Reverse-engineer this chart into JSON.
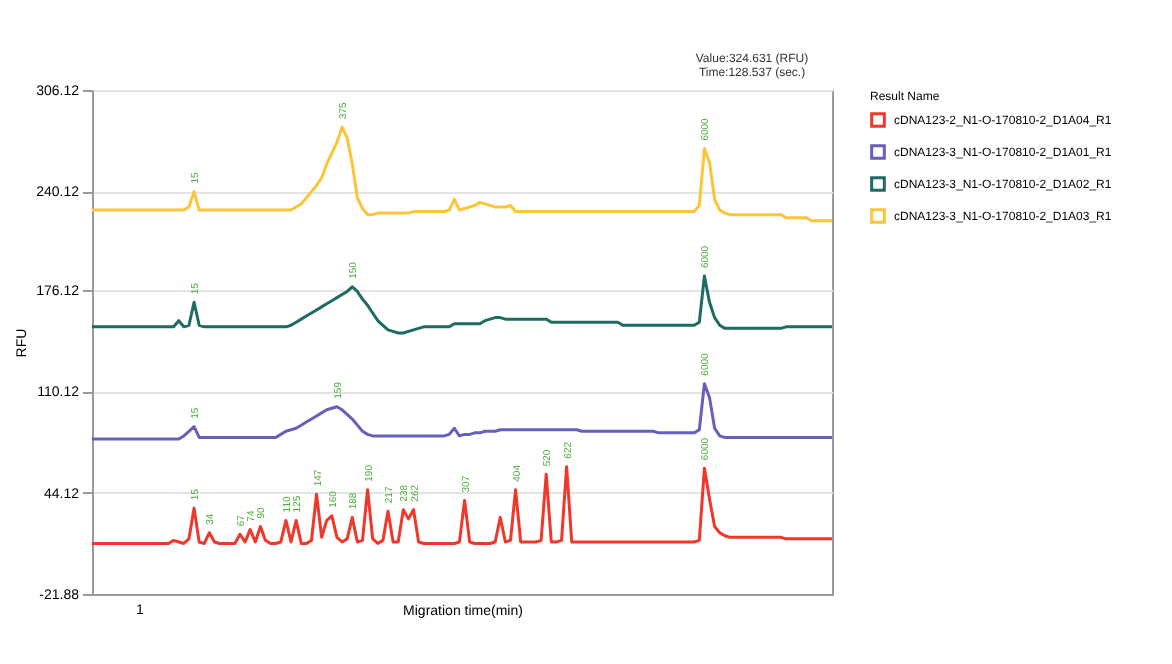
{
  "chart_data": {
    "type": "line",
    "xlabel": "Migration time(min)",
    "ylabel": "RFU",
    "legend_title": "Result Name",
    "legend": "right",
    "grid": "y",
    "tick_labels": "y",
    "ylim": [
      -21.88,
      306.12
    ],
    "yticks": [
      -21.88,
      44.12,
      110.12,
      176.12,
      240.12,
      306.12
    ],
    "categories": [
      null,
      null,
      null,
      null,
      null,
      null,
      null,
      null,
      null,
      null,
      null,
      null,
      null,
      null,
      null,
      null,
      null,
      null,
      null,
      null,
      null,
      null,
      null,
      null,
      null,
      null,
      null,
      null,
      null,
      null,
      null,
      null,
      null,
      null,
      null,
      null,
      null,
      null,
      null,
      null,
      null,
      null,
      null,
      null,
      null,
      null,
      null,
      null,
      null,
      null,
      null,
      null,
      null,
      null,
      null,
      null,
      null,
      null,
      null,
      null,
      null,
      null,
      null,
      null,
      null,
      null,
      null,
      null,
      null,
      null,
      null,
      null,
      null,
      null,
      null,
      null,
      null,
      null,
      null,
      null,
      null,
      null,
      null,
      null,
      null,
      null,
      null,
      null,
      null,
      null,
      null,
      null,
      null,
      null,
      null,
      null,
      null,
      null,
      null,
      null,
      null,
      null,
      null,
      null,
      null,
      null,
      null,
      null,
      null,
      null,
      null,
      null,
      null,
      null,
      null,
      null,
      null,
      null,
      null,
      null,
      null,
      null,
      null,
      null,
      null,
      null,
      null,
      null,
      null,
      null,
      null,
      null,
      null,
      null,
      null,
      null,
      null,
      null,
      null,
      null,
      null,
      null,
      null,
      null,
      null,
      null
    ],
    "series": [
      {
        "name": "cDNA123-2_N1-O-170810-2_D1A04_R1",
        "color": "#f0372a",
        "values": [
          11,
          11,
          11,
          11,
          11,
          11,
          11,
          11,
          11,
          11,
          11,
          11,
          11,
          11,
          11,
          11,
          13,
          12,
          11,
          14,
          34,
          12,
          11,
          18,
          12,
          11,
          11,
          11,
          11,
          17,
          12,
          20,
          12,
          22,
          13,
          11,
          11,
          12,
          26,
          12,
          26,
          11,
          11,
          13,
          43,
          15,
          26,
          29,
          15,
          12,
          14,
          28,
          12,
          13,
          46,
          14,
          11,
          13,
          32,
          12,
          12,
          33,
          27,
          33,
          12,
          11,
          11,
          11,
          11,
          11,
          11,
          11,
          12,
          39,
          12,
          11,
          11,
          11,
          11,
          12,
          28,
          12,
          13,
          46,
          12,
          12,
          12,
          12,
          13,
          56,
          12,
          12,
          13,
          61,
          12,
          12,
          12,
          12,
          12,
          12,
          12,
          12,
          12,
          12,
          12,
          12,
          12,
          12,
          12,
          12,
          12,
          12,
          12,
          12,
          12,
          12,
          12,
          12,
          12,
          13,
          60,
          40,
          22,
          18,
          16,
          15,
          15,
          15,
          15,
          15,
          15,
          15,
          15,
          15,
          15,
          15,
          14,
          14,
          14,
          14,
          14,
          14,
          14,
          14,
          14,
          14
        ]
      },
      {
        "name": "cDNA123-3_N1-O-170810-2_D1A01_R1",
        "color": "#6760bb",
        "values": [
          79,
          79,
          79,
          79,
          79,
          79,
          79,
          79,
          79,
          79,
          79,
          79,
          79,
          79,
          79,
          79,
          79,
          79,
          81,
          84,
          87,
          80,
          80,
          80,
          80,
          80,
          80,
          80,
          80,
          80,
          80,
          80,
          80,
          80,
          80,
          80,
          80,
          82,
          84,
          85,
          86,
          88,
          90,
          92,
          94,
          96,
          98,
          99,
          100,
          98,
          95,
          92,
          88,
          84,
          82,
          81,
          81,
          81,
          81,
          81,
          81,
          81,
          81,
          81,
          81,
          81,
          81,
          81,
          81,
          81,
          82,
          86,
          81,
          82,
          82,
          83,
          83,
          84,
          84,
          84,
          85,
          85,
          85,
          85,
          85,
          85,
          85,
          85,
          85,
          85,
          85,
          85,
          85,
          85,
          85,
          85,
          84,
          84,
          84,
          84,
          84,
          84,
          84,
          84,
          84,
          84,
          84,
          84,
          84,
          84,
          84,
          83,
          83,
          83,
          83,
          83,
          83,
          83,
          83,
          85,
          115,
          106,
          86,
          81,
          80,
          80,
          80,
          80,
          80,
          80,
          80,
          80,
          80,
          80,
          80,
          80,
          80,
          80,
          80,
          80,
          80,
          80,
          80,
          80,
          80,
          80
        ]
      },
      {
        "name": "cDNA123-3_N1-O-170810-2_D1A02_R1",
        "color": "#1d6b63",
        "values": [
          152,
          152,
          152,
          152,
          152,
          152,
          152,
          152,
          152,
          152,
          152,
          152,
          152,
          152,
          152,
          152,
          152,
          156,
          152,
          153,
          168,
          153,
          152,
          152,
          152,
          152,
          152,
          152,
          152,
          152,
          152,
          152,
          152,
          152,
          152,
          152,
          152,
          152,
          152,
          153,
          155,
          157,
          159,
          161,
          163,
          165,
          167,
          169,
          171,
          173,
          175,
          178,
          175,
          170,
          166,
          161,
          156,
          153,
          150,
          149,
          148,
          148,
          149,
          150,
          151,
          152,
          152,
          152,
          152,
          152,
          152,
          154,
          154,
          154,
          154,
          154,
          154,
          156,
          157,
          158,
          158,
          157,
          157,
          157,
          157,
          157,
          157,
          157,
          157,
          157,
          155,
          155,
          155,
          155,
          155,
          155,
          155,
          155,
          155,
          155,
          155,
          155,
          155,
          155,
          153,
          153,
          153,
          153,
          153,
          153,
          153,
          153,
          153,
          153,
          153,
          153,
          153,
          153,
          153,
          155,
          185,
          168,
          158,
          153,
          151,
          151,
          151,
          151,
          151,
          151,
          151,
          151,
          151,
          151,
          151,
          151,
          152,
          152,
          152,
          152,
          152,
          152,
          152,
          152,
          152,
          152
        ]
      },
      {
        "name": "cDNA123-3_N1-O-170810-2_D1A03_R1",
        "color": "#fcc43a",
        "values": [
          228,
          228,
          228,
          228,
          228,
          228,
          228,
          228,
          228,
          228,
          228,
          228,
          228,
          228,
          228,
          228,
          228,
          228,
          228,
          230,
          240,
          228,
          228,
          228,
          228,
          228,
          228,
          228,
          228,
          228,
          228,
          228,
          228,
          228,
          228,
          228,
          228,
          228,
          228,
          228,
          230,
          232,
          236,
          240,
          244,
          249,
          258,
          265,
          272,
          282,
          275,
          258,
          236,
          229,
          225,
          225,
          226,
          226,
          226,
          226,
          226,
          226,
          226,
          227,
          227,
          227,
          227,
          227,
          227,
          227,
          228,
          235,
          228,
          229,
          230,
          231,
          233,
          232,
          231,
          230,
          230,
          230,
          231,
          227,
          227,
          227,
          227,
          227,
          227,
          227,
          227,
          227,
          227,
          227,
          227,
          227,
          227,
          227,
          227,
          227,
          227,
          227,
          227,
          227,
          227,
          227,
          227,
          227,
          227,
          227,
          227,
          227,
          227,
          227,
          227,
          227,
          227,
          227,
          227,
          231,
          268,
          259,
          235,
          228,
          226,
          225,
          225,
          225,
          225,
          225,
          225,
          225,
          225,
          225,
          225,
          225,
          223,
          223,
          223,
          223,
          223,
          221,
          221,
          221,
          221,
          221
        ]
      }
    ],
    "annotations": [
      "Value:324.631 (RFU)",
      "Time:128.537 (sec.)",
      "1",
      {
        "text": "15",
        "y": 34
      },
      {
        "text": "34",
        "y": 18
      },
      {
        "text": "67",
        "y": 17
      },
      {
        "text": "74",
        "y": 20
      },
      {
        "text": "90",
        "y": 22
      },
      {
        "text": "110",
        "y": 26
      },
      {
        "text": "125",
        "y": 26
      },
      {
        "text": "147",
        "y": 43
      },
      {
        "text": "160",
        "y": 29
      },
      {
        "text": "188",
        "y": 28
      },
      {
        "text": "190",
        "y": 46
      },
      {
        "text": "217",
        "y": 32
      },
      {
        "text": "238",
        "y": 33
      },
      {
        "text": "262",
        "y": 33
      },
      {
        "text": "307",
        "y": 39
      },
      {
        "text": "404",
        "y": 46
      },
      {
        "text": "520",
        "y": 56
      },
      {
        "text": "622",
        "y": 61
      },
      {
        "text": "6000",
        "y": 60
      },
      {
        "text": "15",
        "y": 87
      },
      {
        "text": "159",
        "y": 100
      },
      {
        "text": "6000",
        "y": 115
      },
      {
        "text": "15",
        "y": 168
      },
      {
        "text": "150",
        "y": 178
      },
      {
        "text": "6000",
        "y": 185
      },
      {
        "text": "15",
        "y": 240
      },
      {
        "text": "375",
        "y": 282
      },
      {
        "text": "6000",
        "y": 268
      }
    ]
  }
}
